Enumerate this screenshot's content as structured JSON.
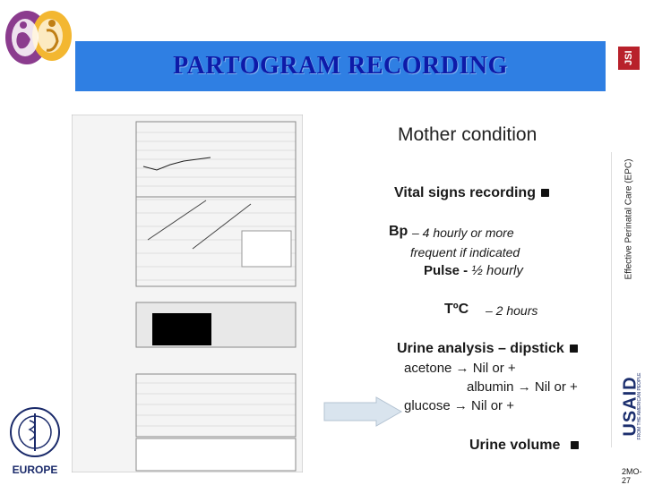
{
  "header": {
    "title": "PARTOGRAM RECORDING",
    "jsi_logo": "JSI",
    "side_label": "Effective Perinatal Care (EPC)",
    "usaid_logo": "USAID",
    "usaid_tagline": "FROM THE AMERICAN PEOPLE",
    "who_logo_text": "EUROPE"
  },
  "content": {
    "heading": "Mother condition",
    "vital_signs": "Vital signs recording",
    "bp_label": "Bp",
    "bp_value": "– 4 hourly or more",
    "bp_value2": "frequent if indicated",
    "pulse_label": "Pulse -",
    "pulse_value": "½ hourly",
    "temp_label": "TºC",
    "temp_value": "– 2 hours",
    "urine_analysis": "Urine analysis – dipstick",
    "acetone": "acetone → Nil or +",
    "albumin": "albumin → Nil or +",
    "glucose": "glucose → Nil or +",
    "urine_volume": "Urine volume"
  },
  "footer": {
    "slide_code": "2MO-27"
  },
  "colors": {
    "banner": "#2f7fe3",
    "title": "#0e1aa8",
    "jsi": "#b8212b",
    "usaid": "#1c2f6e"
  },
  "icons": [
    "checkbox-bullet-icon",
    "arrow-icon",
    "who-emblem-icon",
    "partograph-image-icon"
  ]
}
